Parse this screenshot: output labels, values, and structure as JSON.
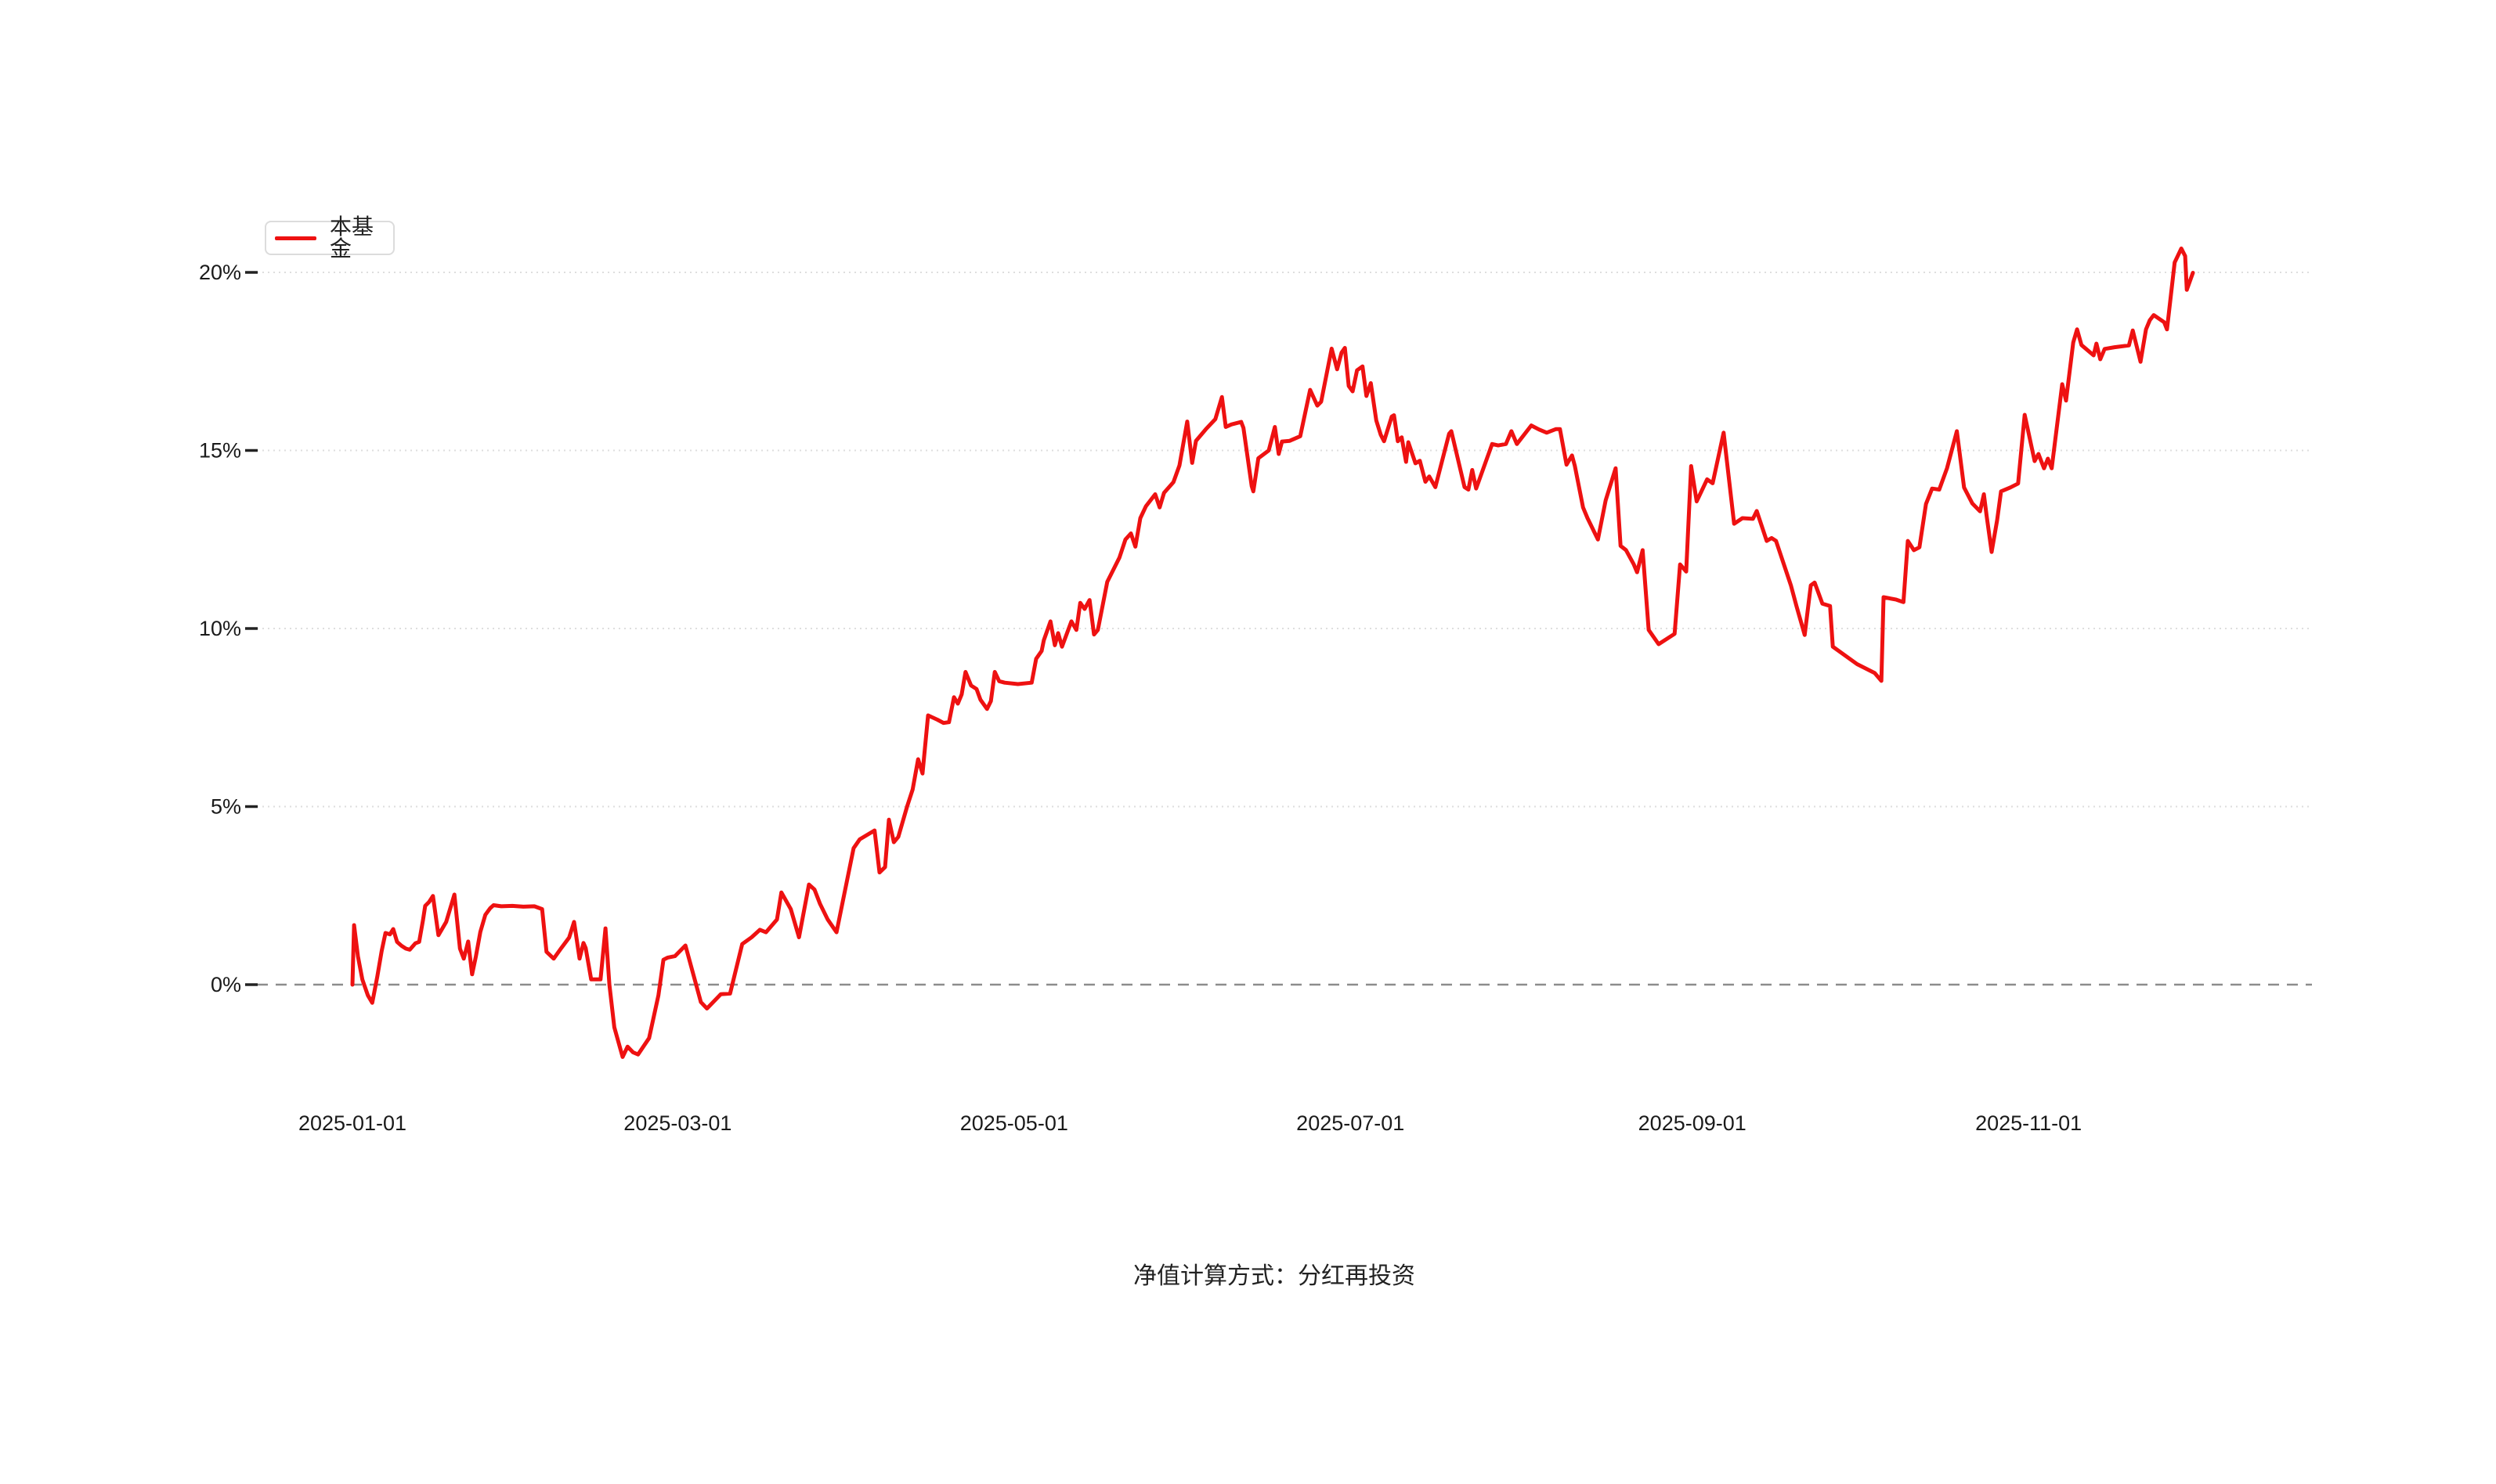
{
  "legend": {
    "label": "本基金"
  },
  "caption": "净值计算方式：分红再投资",
  "colors": {
    "line": "#ee1111",
    "zero_line": "#8c8c8c",
    "grid": "#dedede",
    "tick": "#222222",
    "text": "#1a1a1a"
  },
  "y_axis": {
    "ticks": [
      {
        "label": "20%",
        "value": 20
      },
      {
        "label": "15%",
        "value": 15
      },
      {
        "label": "10%",
        "value": 10
      },
      {
        "label": "5%",
        "value": 5
      },
      {
        "label": "0%",
        "value": 0
      }
    ]
  },
  "x_axis": {
    "ticks": [
      {
        "label": "2025-01-01",
        "day": 0
      },
      {
        "label": "2025-03-01",
        "day": 59
      },
      {
        "label": "2025-05-01",
        "day": 120
      },
      {
        "label": "2025-07-01",
        "day": 181
      },
      {
        "label": "2025-09-01",
        "day": 243
      },
      {
        "label": "2025-11-01",
        "day": 304
      }
    ]
  },
  "chart_data": {
    "type": "line",
    "title": "",
    "xlabel": "",
    "ylabel": "",
    "x_unit": "days_since_2025-01-01",
    "y_unit": "percent_return",
    "ylim": [
      -3.5,
      22.5
    ],
    "x_tick_labels": [
      "2025-01-01",
      "2025-03-01",
      "2025-05-01",
      "2025-07-01",
      "2025-09-01",
      "2025-11-01"
    ],
    "y_tick_labels": [
      "0%",
      "5%",
      "10%",
      "15%",
      "20%"
    ],
    "grid": "dotted horizontal gridlines at 5%,10%,15%,20%; dashed gray baseline at 0%",
    "legend_position": "top-left",
    "series": [
      {
        "name": "本基金",
        "color": "#ee1111",
        "points": [
          [
            0,
            0
          ],
          [
            0.3,
            1.67
          ],
          [
            1,
            0.8
          ],
          [
            1.8,
            0.14
          ],
          [
            2.8,
            -0.3
          ],
          [
            3.6,
            -0.51
          ],
          [
            4.5,
            0.22
          ],
          [
            5.3,
            0.94
          ],
          [
            6,
            1.45
          ],
          [
            6.8,
            1.41
          ],
          [
            7.4,
            1.56
          ],
          [
            8.1,
            1.2
          ],
          [
            8.9,
            1.09
          ],
          [
            9.7,
            1.01
          ],
          [
            10.4,
            0.98
          ],
          [
            11.4,
            1.16
          ],
          [
            12.1,
            1.2
          ],
          [
            12.8,
            1.81
          ],
          [
            13.2,
            2.21
          ],
          [
            13.9,
            2.32
          ],
          [
            14.6,
            2.49
          ],
          [
            15.6,
            1.39
          ],
          [
            17,
            1.76
          ],
          [
            18.5,
            2.53
          ],
          [
            19.5,
            1.01
          ],
          [
            20.2,
            0.73
          ],
          [
            21,
            1.21
          ],
          [
            21.7,
            0.29
          ],
          [
            22.4,
            0.8
          ],
          [
            23.2,
            1.48
          ],
          [
            24.1,
            1.96
          ],
          [
            25,
            2.15
          ],
          [
            25.6,
            2.23
          ],
          [
            27,
            2.2
          ],
          [
            29,
            2.21
          ],
          [
            31,
            2.19
          ],
          [
            33,
            2.2
          ],
          [
            34.4,
            2.12
          ],
          [
            35.2,
            0.92
          ],
          [
            36.5,
            0.73
          ],
          [
            37.9,
            1.03
          ],
          [
            39.3,
            1.32
          ],
          [
            40.2,
            1.76
          ],
          [
            41.2,
            0.73
          ],
          [
            41.9,
            1.17
          ],
          [
            42.3,
            1.03
          ],
          [
            43.3,
            0.15
          ],
          [
            45,
            0.15
          ],
          [
            45.9,
            1.58
          ],
          [
            46.6,
            0
          ],
          [
            47.5,
            -1.2
          ],
          [
            49,
            -2.03
          ],
          [
            49.9,
            -1.74
          ],
          [
            50.9,
            -1.9
          ],
          [
            51.8,
            -1.96
          ],
          [
            53.8,
            -1.5
          ],
          [
            55.5,
            -0.3
          ],
          [
            56.4,
            0.7
          ],
          [
            57.2,
            0.76
          ],
          [
            58.5,
            0.8
          ],
          [
            60.4,
            1.1
          ],
          [
            63.2,
            -0.49
          ],
          [
            64.3,
            -0.67
          ],
          [
            66.8,
            -0.27
          ],
          [
            68.5,
            -0.25
          ],
          [
            70.7,
            1.14
          ],
          [
            72.4,
            1.33
          ],
          [
            73.9,
            1.54
          ],
          [
            75,
            1.47
          ],
          [
            77,
            1.83
          ],
          [
            77.8,
            2.59
          ],
          [
            79.5,
            2.12
          ],
          [
            81,
            1.33
          ],
          [
            82.8,
            2.81
          ],
          [
            83.8,
            2.67
          ],
          [
            84.8,
            2.27
          ],
          [
            86.2,
            1.83
          ],
          [
            87.8,
            1.47
          ],
          [
            90.9,
            3.83
          ],
          [
            92,
            4.08
          ],
          [
            94.7,
            4.33
          ],
          [
            95.6,
            3.15
          ],
          [
            96.6,
            3.3
          ],
          [
            97.3,
            4.63
          ],
          [
            98.2,
            4
          ],
          [
            99,
            4.15
          ],
          [
            100.6,
            5
          ],
          [
            101.6,
            5.48
          ],
          [
            102.6,
            6.33
          ],
          [
            103.4,
            5.93
          ],
          [
            104.4,
            7.56
          ],
          [
            106.1,
            7.44
          ],
          [
            107.2,
            7.35
          ],
          [
            108.2,
            7.37
          ],
          [
            109.1,
            8.07
          ],
          [
            109.8,
            7.89
          ],
          [
            110.5,
            8.15
          ],
          [
            111.2,
            8.78
          ],
          [
            112.2,
            8.4
          ],
          [
            113.2,
            8.3
          ],
          [
            113.9,
            8
          ],
          [
            115.1,
            7.74
          ],
          [
            115.8,
            7.96
          ],
          [
            116.5,
            8.78
          ],
          [
            117.3,
            8.52
          ],
          [
            118.3,
            8.48
          ],
          [
            120.7,
            8.44
          ],
          [
            123.2,
            8.48
          ],
          [
            124,
            9.15
          ],
          [
            125,
            9.37
          ],
          [
            125.4,
            9.67
          ],
          [
            126.6,
            10.2
          ],
          [
            127.4,
            9.53
          ],
          [
            128,
            9.87
          ],
          [
            128.7,
            9.49
          ],
          [
            130.4,
            10.2
          ],
          [
            131.3,
            9.96
          ],
          [
            132,
            10.72
          ],
          [
            132.8,
            10.55
          ],
          [
            133.7,
            10.8
          ],
          [
            134.5,
            9.83
          ],
          [
            135.2,
            9.96
          ],
          [
            136.9,
            11.31
          ],
          [
            139.1,
            11.99
          ],
          [
            140.2,
            12.5
          ],
          [
            141.2,
            12.67
          ],
          [
            142,
            12.3
          ],
          [
            142.9,
            13.1
          ],
          [
            143.9,
            13.43
          ],
          [
            145.6,
            13.77
          ],
          [
            146.4,
            13.4
          ],
          [
            147.2,
            13.81
          ],
          [
            148.9,
            14.11
          ],
          [
            150,
            14.58
          ],
          [
            151.4,
            15.81
          ],
          [
            152.3,
            14.65
          ],
          [
            153,
            15.27
          ],
          [
            154.8,
            15.6
          ],
          [
            156.5,
            15.88
          ],
          [
            157.7,
            16.5
          ],
          [
            158.4,
            15.66
          ],
          [
            159.4,
            15.73
          ],
          [
            161.2,
            15.8
          ],
          [
            161.6,
            15.63
          ],
          [
            163.1,
            14
          ],
          [
            163.4,
            13.85
          ],
          [
            164.3,
            14.78
          ],
          [
            166.2,
            15
          ],
          [
            167.3,
            15.66
          ],
          [
            168,
            14.9
          ],
          [
            168.6,
            15.25
          ],
          [
            170,
            15.27
          ],
          [
            171.9,
            15.4
          ],
          [
            173.7,
            16.7
          ],
          [
            175,
            16.26
          ],
          [
            175.7,
            16.37
          ],
          [
            177.6,
            17.86
          ],
          [
            178.6,
            17.28
          ],
          [
            179.4,
            17.75
          ],
          [
            180,
            17.88
          ],
          [
            180.7,
            16.81
          ],
          [
            181.4,
            16.66
          ],
          [
            182.2,
            17.25
          ],
          [
            183.2,
            17.36
          ],
          [
            183.9,
            16.53
          ],
          [
            184.7,
            16.89
          ],
          [
            185.7,
            15.84
          ],
          [
            186.5,
            15.44
          ],
          [
            187.1,
            15.26
          ],
          [
            188.5,
            15.95
          ],
          [
            188.9,
            15.99
          ],
          [
            189.6,
            15.26
          ],
          [
            190.3,
            15.37
          ],
          [
            191.1,
            14.68
          ],
          [
            191.5,
            15.23
          ],
          [
            192.8,
            14.64
          ],
          [
            193.6,
            14.71
          ],
          [
            194.6,
            14.12
          ],
          [
            195.3,
            14.27
          ],
          [
            196.4,
            13.97
          ],
          [
            198.9,
            15.47
          ],
          [
            199.3,
            15.54
          ],
          [
            201.7,
            13.97
          ],
          [
            202.4,
            13.9
          ],
          [
            203.1,
            14.45
          ],
          [
            203.8,
            13.93
          ],
          [
            206.7,
            15.18
          ],
          [
            207.8,
            15.14
          ],
          [
            209.2,
            15.18
          ],
          [
            210.2,
            15.54
          ],
          [
            211.2,
            15.18
          ],
          [
            213.8,
            15.7
          ],
          [
            215.2,
            15.59
          ],
          [
            216.6,
            15.5
          ],
          [
            218.3,
            15.6
          ],
          [
            219,
            15.6
          ],
          [
            220.2,
            14.6
          ],
          [
            221.2,
            14.86
          ],
          [
            221.7,
            14.57
          ],
          [
            223.2,
            13.4
          ],
          [
            224,
            13.1
          ],
          [
            225.9,
            12.5
          ],
          [
            227.3,
            13.6
          ],
          [
            229.1,
            14.5
          ],
          [
            230,
            12.32
          ],
          [
            231,
            12.2
          ],
          [
            232.4,
            11.8
          ],
          [
            233,
            11.58
          ],
          [
            234,
            12.2
          ],
          [
            235.1,
            9.96
          ],
          [
            236.9,
            9.56
          ],
          [
            239.8,
            9.85
          ],
          [
            240.8,
            11.8
          ],
          [
            241.9,
            11.6
          ],
          [
            242.8,
            14.56
          ],
          [
            243.8,
            13.57
          ],
          [
            245.7,
            14.19
          ],
          [
            246.7,
            14.08
          ],
          [
            248.7,
            15.5
          ],
          [
            250.6,
            12.94
          ],
          [
            252.1,
            13.1
          ],
          [
            254,
            13.08
          ],
          [
            254.7,
            13.3
          ],
          [
            256.5,
            12.46
          ],
          [
            257.4,
            12.54
          ],
          [
            258.2,
            12.46
          ],
          [
            260.9,
            11.21
          ],
          [
            261.9,
            10.63
          ],
          [
            263.4,
            9.82
          ],
          [
            264.5,
            11.21
          ],
          [
            265.2,
            11.29
          ],
          [
            266.6,
            10.7
          ],
          [
            268,
            10.63
          ],
          [
            268.5,
            9.49
          ],
          [
            272.9,
            9
          ],
          [
            276.1,
            8.75
          ],
          [
            277.3,
            8.53
          ],
          [
            277.7,
            10.88
          ],
          [
            280,
            10.81
          ],
          [
            281.3,
            10.74
          ],
          [
            282.1,
            12.46
          ],
          [
            283.2,
            12.2
          ],
          [
            284.2,
            12.28
          ],
          [
            285.4,
            13.5
          ],
          [
            286.5,
            13.93
          ],
          [
            287.8,
            13.9
          ],
          [
            289.2,
            14.5
          ],
          [
            291,
            15.54
          ],
          [
            292.3,
            13.96
          ],
          [
            293.8,
            13.51
          ],
          [
            295.2,
            13.29
          ],
          [
            295.9,
            13.77
          ],
          [
            296.4,
            13.15
          ],
          [
            297.3,
            12.15
          ],
          [
            298.3,
            13.04
          ],
          [
            299,
            13.85
          ],
          [
            300.7,
            13.96
          ],
          [
            302.1,
            14.07
          ],
          [
            303.3,
            16
          ],
          [
            305.1,
            14.7
          ],
          [
            305.8,
            14.9
          ],
          [
            306.8,
            14.5
          ],
          [
            307.5,
            14.77
          ],
          [
            308.2,
            14.5
          ],
          [
            310.1,
            16.86
          ],
          [
            310.8,
            16.4
          ],
          [
            312.1,
            18.03
          ],
          [
            312.8,
            18.4
          ],
          [
            313.6,
            17.96
          ],
          [
            315.8,
            17.67
          ],
          [
            316.3,
            18
          ],
          [
            317,
            17.56
          ],
          [
            317.8,
            17.85
          ],
          [
            319.6,
            17.9
          ],
          [
            322.2,
            17.95
          ],
          [
            322.9,
            18.37
          ],
          [
            323.9,
            17.74
          ],
          [
            324.3,
            17.49
          ],
          [
            325.3,
            18.4
          ],
          [
            326,
            18.66
          ],
          [
            326.7,
            18.8
          ],
          [
            328.6,
            18.6
          ],
          [
            329.1,
            18.4
          ],
          [
            330.5,
            20.28
          ],
          [
            331.7,
            20.67
          ],
          [
            332.4,
            20.46
          ],
          [
            332.7,
            19.51
          ],
          [
            333.8,
            19.99
          ]
        ]
      }
    ]
  }
}
